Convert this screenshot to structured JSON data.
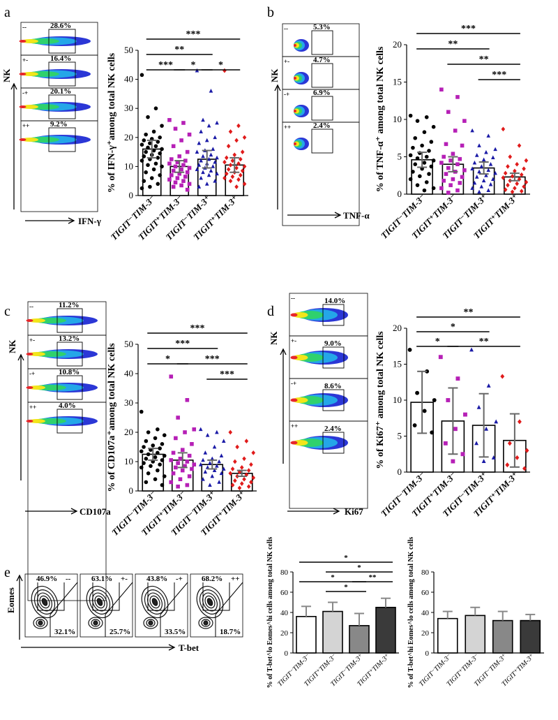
{
  "panels": {
    "a": "a",
    "b": "b",
    "c": "c",
    "d": "d",
    "e": "e"
  },
  "flow": {
    "a": {
      "ylabel": "NK",
      "xlabel": "IFN-γ",
      "gates": [
        {
          "quad": "--",
          "pct": "28.6%"
        },
        {
          "quad": "+-",
          "pct": "16.4%"
        },
        {
          "quad": "-+",
          "pct": "20.1%"
        },
        {
          "quad": "++",
          "pct": "9.2%"
        }
      ]
    },
    "b": {
      "ylabel": "NK",
      "xlabel": "TNF-α",
      "gates": [
        {
          "quad": "--",
          "pct": "5.3%"
        },
        {
          "quad": "+-",
          "pct": "4.7%"
        },
        {
          "quad": "-+",
          "pct": "6.9%"
        },
        {
          "quad": "++",
          "pct": "2.4%"
        }
      ]
    },
    "c": {
      "ylabel": "NK",
      "xlabel": "CD107a",
      "gates": [
        {
          "quad": "--",
          "pct": "11.2%"
        },
        {
          "quad": "+-",
          "pct": "13.2%"
        },
        {
          "quad": "-+",
          "pct": "10.8%"
        },
        {
          "quad": "++",
          "pct": "4.0%"
        }
      ]
    },
    "d": {
      "ylabel": "NK",
      "xlabel": "Ki67",
      "gates": [
        {
          "quad": "--",
          "pct": "14.0%"
        },
        {
          "quad": "+-",
          "pct": "9.0%"
        },
        {
          "quad": "-+",
          "pct": "8.6%"
        },
        {
          "quad": "++",
          "pct": "2.4%"
        }
      ]
    },
    "e": {
      "ylabel": "Eomes",
      "xlabel": "T-bet",
      "plots": [
        {
          "quad": "--",
          "top": "46.9%",
          "bottom": "32.1%"
        },
        {
          "quad": "+-",
          "top": "63.1%",
          "bottom": "25.7%"
        },
        {
          "quad": "-+",
          "top": "43.8%",
          "bottom": "33.5%"
        },
        {
          "quad": "++",
          "top": "68.2%",
          "bottom": "18.7%"
        }
      ]
    }
  },
  "colors": {
    "group1": "#000000",
    "group2": "#b620b6",
    "group3": "#1a1aa6",
    "group4": "#e01b1b",
    "e_left": [
      "#ffffff",
      "#d4d4d4",
      "#888888",
      "#3a3a3a"
    ]
  },
  "chart_data": [
    {
      "id": "a",
      "type": "bar",
      "ylabel": "% of IFN-γ⁺among total NK cells",
      "categories": [
        "TIGIT⁻TIM-3⁻",
        "TIGIT⁺TIM-3⁻",
        "TIGIT⁻TIM-3⁺",
        "TIGIT⁺TIM-3⁺"
      ],
      "values": [
        16,
        10,
        12.5,
        10.5
      ],
      "errors": [
        3,
        2,
        3,
        2.5
      ],
      "ylim": [
        0,
        50
      ],
      "yticks": [
        0,
        10,
        20,
        30,
        40,
        50
      ],
      "points": [
        [
          41.5,
          30,
          27,
          24,
          22,
          21,
          20,
          19.5,
          19,
          18.5,
          18,
          17.5,
          17,
          16.5,
          16,
          15.5,
          15,
          14.5,
          14,
          13.5,
          13,
          12.5,
          12,
          11,
          10.5,
          10,
          9,
          8,
          7,
          6,
          5,
          4,
          3,
          2.5
        ],
        [
          26,
          25,
          23,
          21,
          19,
          17,
          15,
          13.5,
          12.5,
          12,
          11.5,
          11,
          10.5,
          10,
          9.5,
          9,
          8.5,
          8,
          7.5,
          7,
          6.5,
          6,
          5.5,
          5,
          4.5,
          4,
          3.5,
          3,
          2
        ],
        [
          43,
          36,
          26,
          25,
          24,
          22,
          20,
          19,
          18,
          16,
          15.5,
          15,
          14,
          13.5,
          13,
          12.5,
          12,
          11.5,
          11,
          10.5,
          10,
          9.5,
          9,
          8.5,
          8,
          7.5,
          7,
          6,
          5,
          4,
          3
        ],
        [
          43,
          24,
          22,
          20,
          19,
          17,
          15,
          14,
          13,
          12.5,
          12,
          11.5,
          11,
          10.5,
          10,
          9.5,
          9,
          8.5,
          8,
          7.5,
          7,
          6.5,
          6,
          5.5,
          5,
          4,
          3
        ]
      ],
      "sig": [
        {
          "text": "***",
          "from": 0,
          "to": 3,
          "level": 0
        },
        {
          "text": "**",
          "from": 0,
          "to": 2,
          "level": 1
        },
        {
          "text": "***",
          "from": 0,
          "to": 1,
          "level": 2
        },
        {
          "text": "*",
          "from": 1,
          "to": 2,
          "level": 2
        },
        {
          "text": "*",
          "from": 2,
          "to": 3,
          "level": 2
        }
      ]
    },
    {
      "id": "b",
      "type": "bar",
      "ylabel": "% of TNF-α⁺ among total NK cells",
      "categories": [
        "TIGIT⁻TIM-3⁻",
        "TIGIT⁺TIM-3⁻",
        "TIGIT⁻TIM-3⁺",
        "TIGIT⁺TIM-3⁺"
      ],
      "values": [
        4.6,
        4,
        3.5,
        2.3
      ],
      "errors": [
        1,
        1,
        0.8,
        0.5
      ],
      "ylim": [
        0,
        20
      ],
      "yticks": [
        0,
        5,
        10,
        15,
        20
      ],
      "points": [
        [
          10.5,
          10.3,
          9.8,
          9,
          8.3,
          7.5,
          7,
          6.5,
          6.2,
          5.8,
          5.5,
          5.2,
          5,
          4.8,
          4.5,
          4.2,
          4,
          3.7,
          3.4,
          3,
          2.7,
          2.4,
          2,
          1.6,
          1.2,
          0.8,
          0.5
        ],
        [
          14,
          13,
          11,
          9.8,
          8.5,
          6.7,
          6.5,
          5.4,
          5,
          4.7,
          4.5,
          4.2,
          4,
          3.5,
          3.2,
          3,
          2.7,
          2.3,
          2,
          1.8,
          1.5,
          1.2,
          0.8,
          0.5,
          0.2
        ],
        [
          8.5,
          7.8,
          6.5,
          6,
          5.6,
          5.2,
          4.9,
          4.6,
          4.2,
          4,
          3.7,
          3.4,
          3.2,
          3,
          2.8,
          2.5,
          2.3,
          2,
          1.8,
          1.5,
          1.3,
          1,
          0.8,
          0.5,
          0.3
        ],
        [
          8.7,
          6.5,
          5,
          4.5,
          4,
          3.7,
          3.4,
          3.1,
          2.8,
          2.6,
          2.4,
          2.2,
          2,
          1.8,
          1.6,
          1.4,
          1.2,
          1,
          0.8,
          0.6,
          0.4,
          0.3
        ]
      ],
      "sig": [
        {
          "text": "***",
          "from": 0,
          "to": 3,
          "level": 0
        },
        {
          "text": "**",
          "from": 0,
          "to": 2,
          "level": 1
        },
        {
          "text": "**",
          "from": 1,
          "to": 3,
          "level": 2
        },
        {
          "text": "***",
          "from": 2,
          "to": 3,
          "level": 3
        }
      ]
    },
    {
      "id": "c",
      "type": "bar",
      "ylabel": "% of CD107a⁺among total NK cells",
      "categories": [
        "TIGIT⁻TIM-3⁻",
        "TIGIT⁺TIM-3⁻",
        "TIGIT⁻TIM-3⁺",
        "TIGIT⁺TIM-3⁺"
      ],
      "values": [
        12.5,
        10.5,
        9,
        6
      ],
      "errors": [
        2,
        2.5,
        1.5,
        1
      ],
      "ylim": [
        0,
        50
      ],
      "yticks": [
        0,
        10,
        20,
        30,
        40,
        50
      ],
      "points": [
        [
          27,
          21,
          20,
          19,
          18,
          17,
          16,
          15.5,
          15,
          14.5,
          14,
          13.5,
          13,
          12.5,
          12,
          11.5,
          11,
          10.5,
          10,
          9.5,
          9,
          8.5,
          8,
          7,
          6,
          5,
          4,
          3,
          2
        ],
        [
          39,
          31,
          25,
          21,
          20,
          18,
          16,
          14,
          13,
          12,
          11,
          10.5,
          10,
          9.5,
          9,
          8.5,
          8,
          7.5,
          7,
          6,
          5,
          4,
          3,
          2,
          1.5
        ],
        [
          21,
          20,
          19,
          17,
          15,
          13,
          12,
          11,
          10.5,
          10,
          9.5,
          9,
          8.5,
          8,
          7.5,
          7,
          6.5,
          6,
          5,
          4,
          3,
          2
        ],
        [
          20,
          17,
          15,
          13,
          11,
          10,
          9,
          8,
          7.5,
          7,
          6.5,
          6,
          5.5,
          5,
          4.5,
          4,
          3.5,
          3,
          2.5,
          2,
          1.5,
          1
        ]
      ],
      "sig": [
        {
          "text": "***",
          "from": 0,
          "to": 3,
          "level": 0
        },
        {
          "text": "***",
          "from": 0,
          "to": 2,
          "level": 1
        },
        {
          "text": "***",
          "from": 1,
          "to": 3,
          "level": 2
        },
        {
          "text": "*",
          "from": 0,
          "to": 1,
          "level": 2
        },
        {
          "text": "***",
          "from": 2,
          "to": 3,
          "level": 3
        }
      ]
    },
    {
      "id": "d",
      "type": "bar",
      "ylabel": "% of Ki67⁺ among total NK cells",
      "categories": [
        "TIGIT⁻TIM-3⁻",
        "TIGIT⁺TIM-3⁻",
        "TIGIT⁻TIM-3⁺",
        "TIGIT⁺TIM-3⁺"
      ],
      "values": [
        9.7,
        7.1,
        6.5,
        4.4
      ],
      "errors": [
        4.3,
        4.6,
        4.4,
        3.7
      ],
      "ylim": [
        0,
        20
      ],
      "yticks": [
        0,
        5,
        10,
        15,
        20
      ],
      "points": [
        [
          17,
          14,
          11,
          10,
          8.5,
          6.5,
          5.5
        ],
        [
          16,
          13,
          10,
          8,
          6,
          4,
          2.5,
          1.5
        ],
        [
          17,
          12,
          9,
          7,
          6,
          4,
          2,
          1.5
        ],
        [
          13.3,
          7,
          4,
          3,
          2,
          1,
          0.5
        ]
      ],
      "sig": [
        {
          "text": "**",
          "from": 0,
          "to": 3,
          "level": 0
        },
        {
          "text": "*",
          "from": 0,
          "to": 2,
          "level": 1
        },
        {
          "text": "*",
          "from": 0,
          "to": 1,
          "level": 2
        },
        {
          "text": "**",
          "from": 1,
          "to": 3,
          "level": 2
        }
      ]
    },
    {
      "id": "e1",
      "type": "bar",
      "ylabel": "% of T-bet^lo Eomes^hi cells among total NK cells",
      "categories": [
        "TIGIT⁻TIM-3⁻",
        "TIGIT⁺TIM-3⁻",
        "TIGIT⁻TIM-3⁺",
        "TIGIT⁺TIM-3⁺"
      ],
      "values": [
        36,
        41,
        27,
        45
      ],
      "errors": [
        10,
        9,
        12,
        9
      ],
      "ylim": [
        0,
        80
      ],
      "yticks": [
        0,
        20,
        40,
        60,
        80
      ],
      "sig": [
        {
          "text": "*",
          "from": 0,
          "to": 3,
          "level": 0
        },
        {
          "text": "*",
          "from": 1,
          "to": 3,
          "level": 1
        },
        {
          "text": "*",
          "from": 0,
          "to": 2,
          "level": 2
        },
        {
          "text": "**",
          "from": 2,
          "to": 3,
          "level": 2
        },
        {
          "text": "*",
          "from": 1,
          "to": 2,
          "level": 3
        }
      ]
    },
    {
      "id": "e2",
      "type": "bar",
      "ylabel": "% of T-bet^hi Eomes^lo cells among total NK cells",
      "categories": [
        "TIGIT⁻TIM-3⁻",
        "TIGIT⁺TIM-3⁻",
        "TIGIT⁻TIM-3⁺",
        "TIGIT⁺TIM-3⁺"
      ],
      "values": [
        34,
        37,
        32,
        32
      ],
      "errors": [
        7,
        8,
        9,
        6
      ],
      "ylim": [
        0,
        80
      ],
      "yticks": [
        0,
        20,
        40,
        60,
        80
      ],
      "sig": []
    }
  ]
}
